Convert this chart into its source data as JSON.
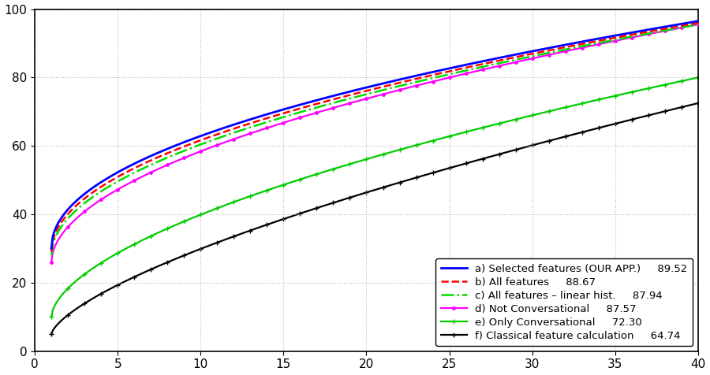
{
  "x_ticks": [
    0,
    5,
    10,
    15,
    20,
    25,
    30,
    35,
    40
  ],
  "y_ticks": [
    0,
    20,
    40,
    60,
    80,
    100
  ],
  "series": [
    {
      "label": "a) Selected features (OUR APP.)",
      "score": "89.52",
      "color": "#0000ff",
      "linestyle": "-",
      "marker": null,
      "linewidth": 2.0,
      "zorder": 6,
      "y1": 30.0,
      "y40": 96.5,
      "power": 0.48
    },
    {
      "label": "b) All features",
      "score": "88.67",
      "color": "#ff0000",
      "linestyle": "--",
      "marker": null,
      "linewidth": 1.8,
      "zorder": 5,
      "y1": 29.0,
      "y40": 96.0,
      "power": 0.49
    },
    {
      "label": "c) All features – linear hist.",
      "score": "87.94",
      "color": "#00dd00",
      "linestyle": "-.",
      "marker": null,
      "linewidth": 1.8,
      "zorder": 4,
      "y1": 28.0,
      "y40": 95.5,
      "power": 0.5
    },
    {
      "label": "d) Not Conversational",
      "score": "87.57",
      "color": "#ff00ff",
      "linestyle": "-",
      "marker": ".",
      "markersize": 5,
      "linewidth": 1.6,
      "zorder": 3,
      "y1": 26.0,
      "y40": 95.5,
      "power": 0.52
    },
    {
      "label": "e) Only Conversational",
      "score": "72.30",
      "color": "#00cc00",
      "linestyle": "-",
      "marker": "+",
      "markersize": 5,
      "linewidth": 1.6,
      "zorder": 2,
      "y1": 10.0,
      "y40": 80.0,
      "power": 0.58
    },
    {
      "label": "f) Classical feature calculation",
      "score": "64.74",
      "color": "#000000",
      "linestyle": "-",
      "marker": "+",
      "markersize": 5,
      "linewidth": 1.6,
      "zorder": 1,
      "y1": 5.0,
      "y40": 72.5,
      "power": 0.68
    }
  ],
  "grid_color": "#bbbbbb",
  "background_color": "#ffffff",
  "tick_fontsize": 11,
  "legend_fontsize": 9.5
}
